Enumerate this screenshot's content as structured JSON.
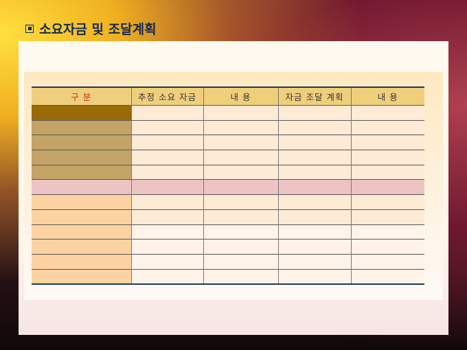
{
  "slide": {
    "title": "소요자금 및 조달계획",
    "bullet_icon": "square-bullet-icon"
  },
  "table": {
    "headers": [
      "구 분",
      "추정 소요 자금",
      "내  용",
      "자금 조달 계획",
      "내   용"
    ],
    "rows": 12,
    "colors": {
      "header": "#f0cf7c",
      "header_first_text": "#c03020",
      "row1_first": "#9a6a08",
      "rows2_5_first": "#c4a466",
      "row6": "#ecc4c4",
      "rows7_12_first": "#fdd2a2",
      "border": "#1e3a5a"
    }
  }
}
